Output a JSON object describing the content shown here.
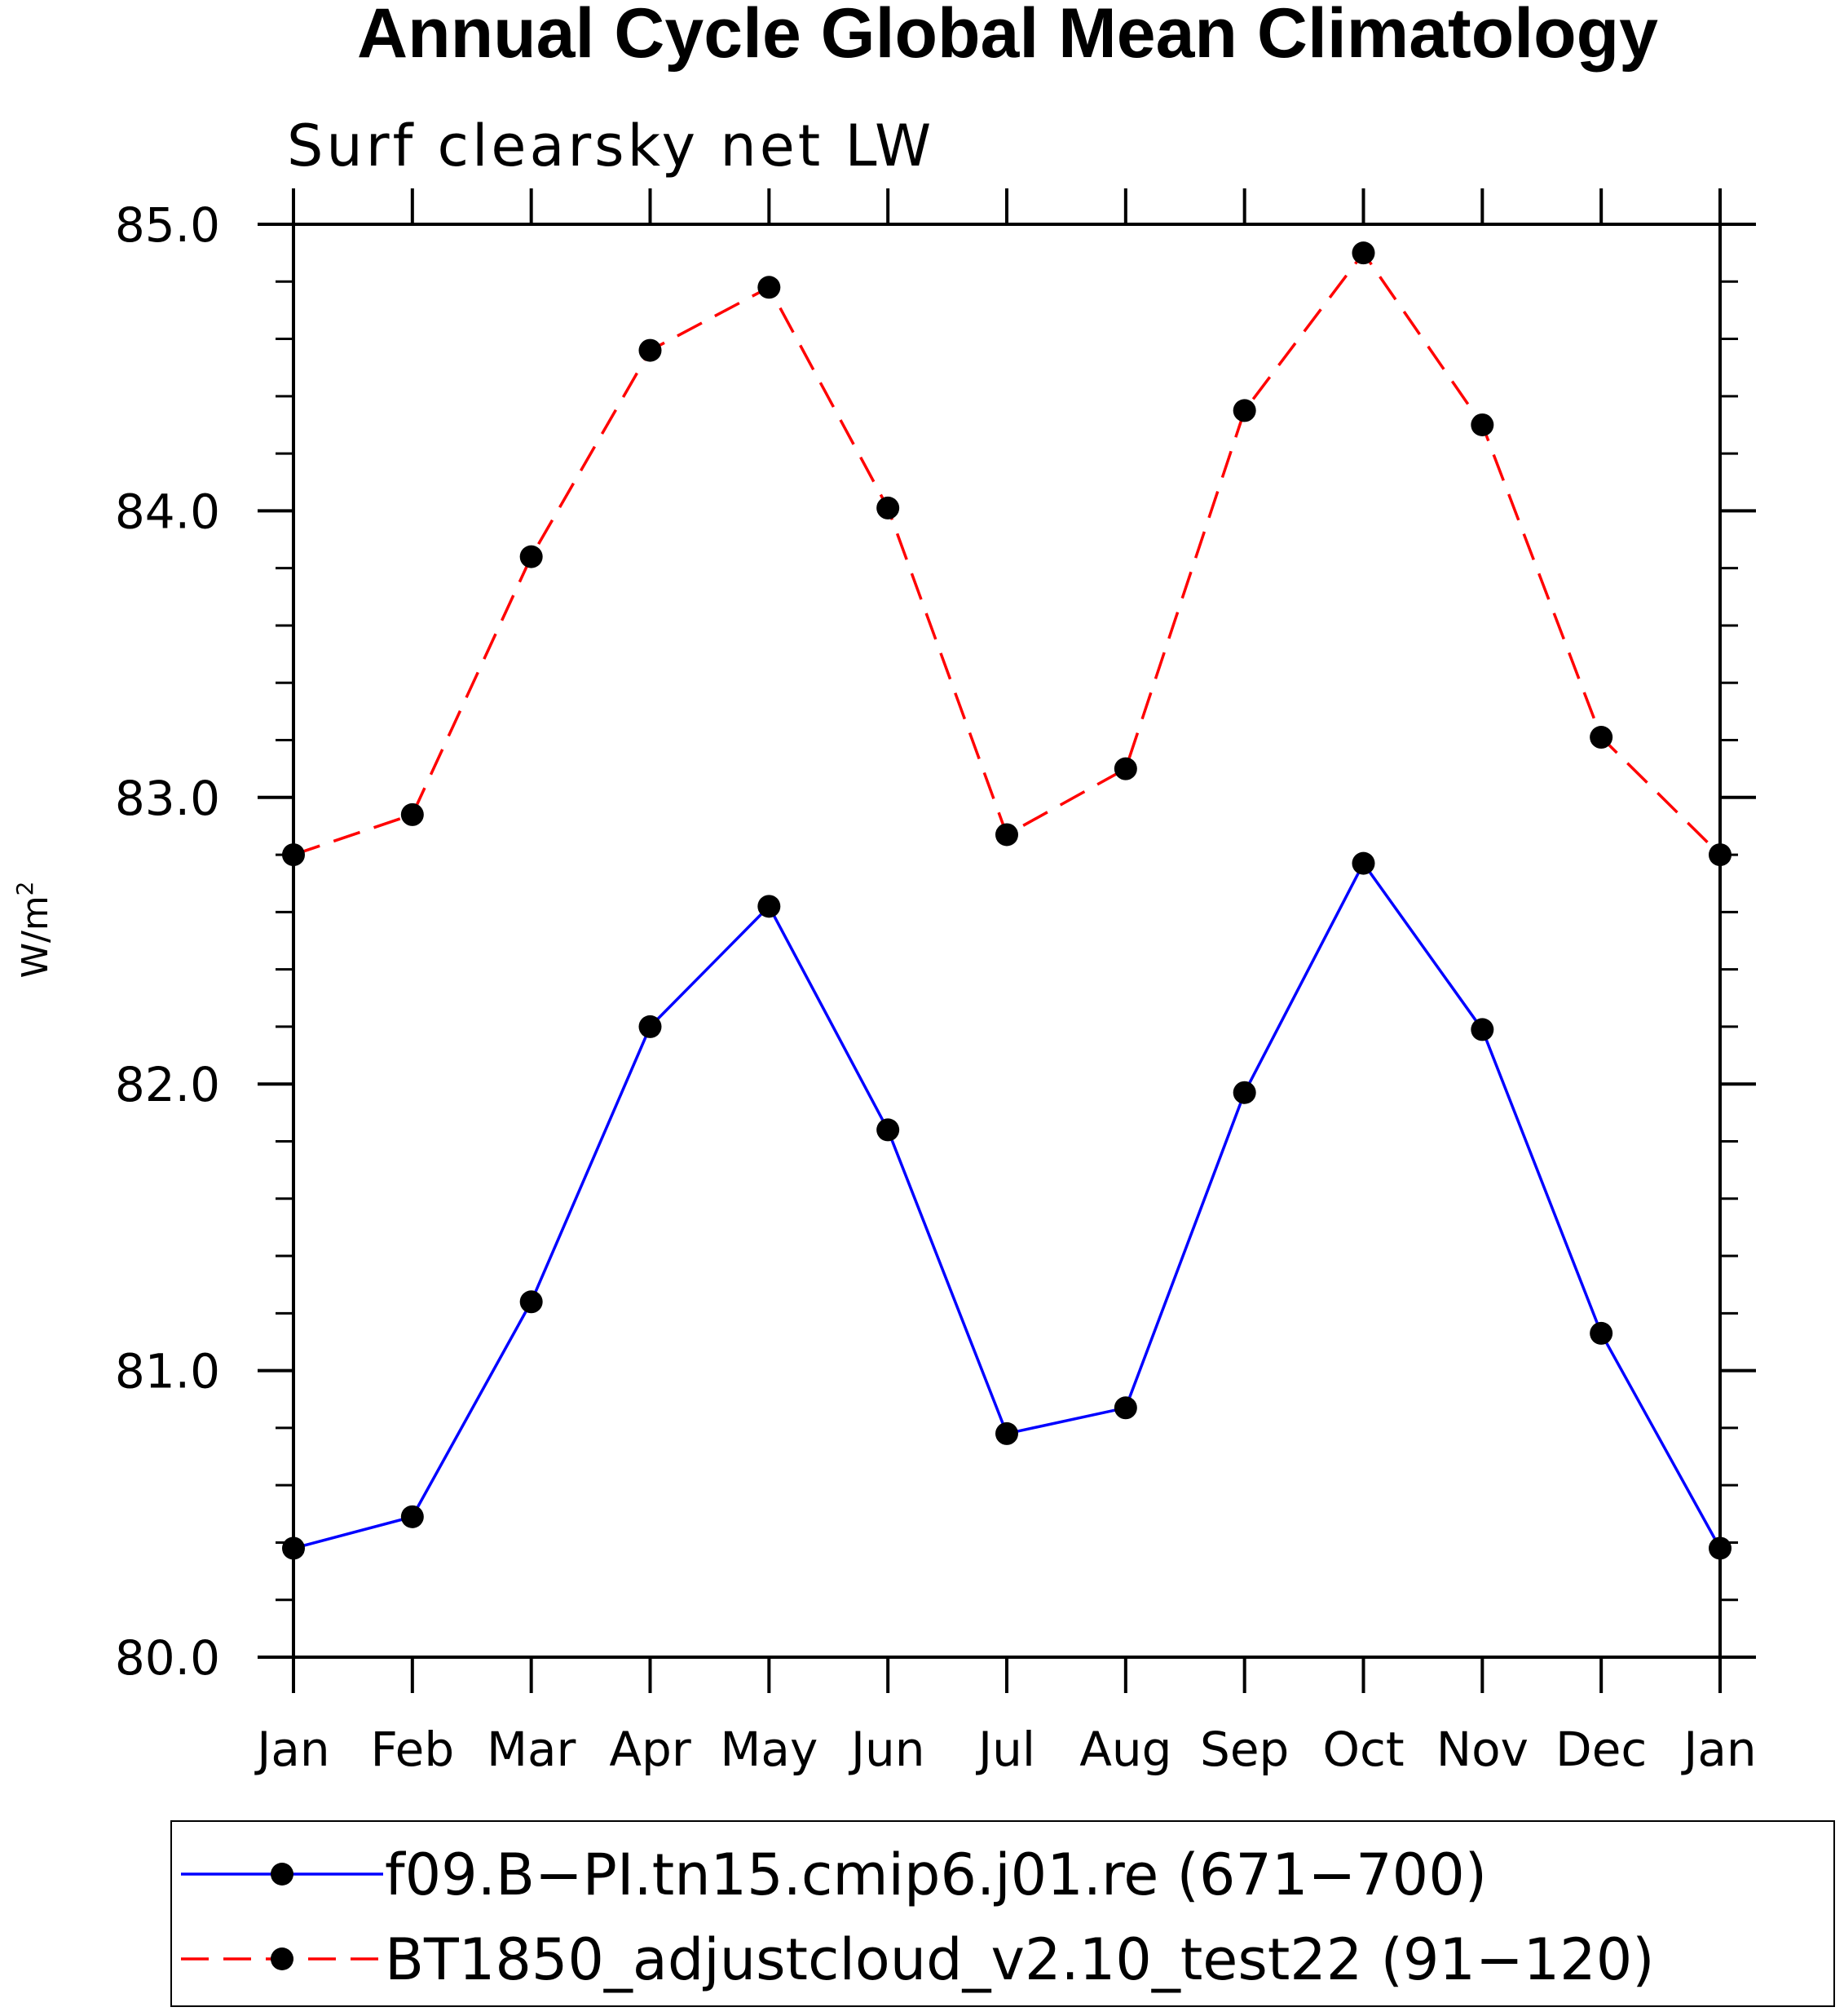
{
  "chart_data": {
    "type": "line",
    "title": "Annual Cycle Global Mean Climatology",
    "subtitle": "Surf clearsky net LW",
    "ylabel": "W/m",
    "ylabel_superscript": "2",
    "xlabel": "",
    "categories": [
      "Jan",
      "Feb",
      "Mar",
      "Apr",
      "May",
      "Jun",
      "Jul",
      "Aug",
      "Sep",
      "Oct",
      "Nov",
      "Dec",
      "Jan"
    ],
    "ylim": [
      80.0,
      85.0
    ],
    "yticks": [
      "80.0",
      "81.0",
      "82.0",
      "83.0",
      "84.0",
      "85.0"
    ],
    "grid": false,
    "legend_position": "bottom",
    "series": [
      {
        "name": "f09.B−PI.tn15.cmip6.j01.re (671−700)",
        "color": "#0000ff",
        "dash": "solid",
        "marker": "filled-circle",
        "values": [
          80.38,
          80.49,
          81.24,
          82.2,
          82.62,
          81.84,
          80.78,
          80.87,
          81.97,
          82.77,
          82.19,
          81.13,
          80.38
        ]
      },
      {
        "name": "BT1850_adjustcloud_v2.10_test22 (91−120)",
        "color": "#ff0000",
        "dash": "dashed",
        "marker": "filled-circle",
        "values": [
          82.8,
          82.94,
          83.84,
          84.56,
          84.78,
          84.01,
          82.87,
          83.1,
          84.35,
          84.9,
          84.3,
          83.21,
          82.8
        ]
      }
    ]
  }
}
